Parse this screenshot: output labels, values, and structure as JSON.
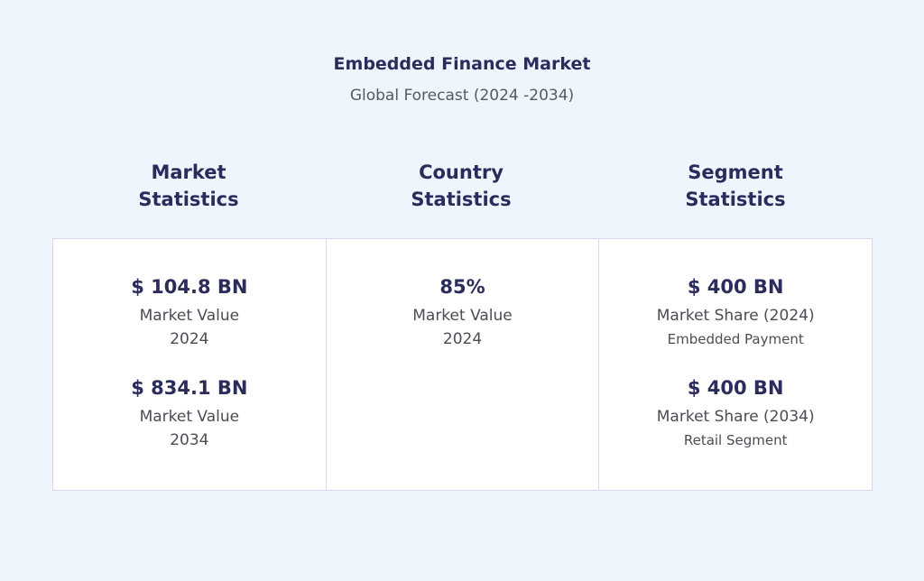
{
  "header": {
    "title": "Embedded Finance Market",
    "subtitle": "Global Forecast (2024 -2034)"
  },
  "columns": [
    {
      "heading": "Market Statistics",
      "items": [
        {
          "value": "$ 104.8 BN",
          "lines": [
            "Market Value",
            "2024"
          ]
        },
        {
          "value": "$ 834.1 BN",
          "lines": [
            "Market Value",
            "2034"
          ]
        }
      ]
    },
    {
      "heading": "Country Statistics",
      "items": [
        {
          "value": "85%",
          "lines": [
            "Market Value",
            "2024"
          ]
        }
      ]
    },
    {
      "heading": "Segment Statistics",
      "items": [
        {
          "value": "$ 400 BN",
          "lines": [
            "Market Share (2024)",
            "Embedded Payment"
          ]
        },
        {
          "value": "$ 400 BN",
          "lines": [
            "Market Share (2034)",
            "Retail Segment"
          ]
        }
      ]
    }
  ]
}
